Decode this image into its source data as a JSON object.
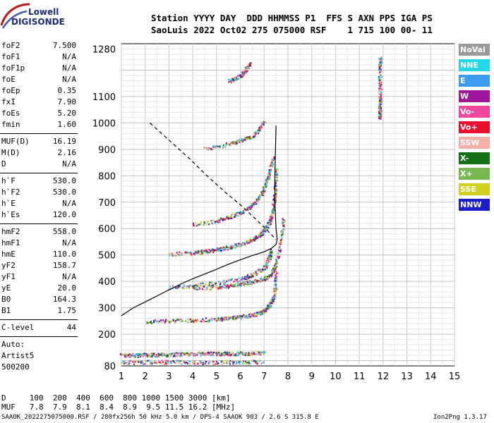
{
  "logo": {
    "line1": "Lowell",
    "line2": "DIGISONDE"
  },
  "header": {
    "labels": "Station YYYY DAY  DDD HHMMSS P1  FFS S AXN PPS IGA PS",
    "values": "SaoLuis 2022 Oct02 275 075000 RSF    1 715 100 00- 11"
  },
  "params": {
    "group1": [
      {
        "name": "foF2",
        "value": "7.500"
      },
      {
        "name": "foF1",
        "value": "N/A"
      },
      {
        "name": "foF1p",
        "value": "N/A"
      },
      {
        "name": "foE",
        "value": "N/A"
      },
      {
        "name": "foEp",
        "value": "0.35"
      },
      {
        "name": "fxI",
        "value": "7.90"
      },
      {
        "name": "foEs",
        "value": "5.20"
      },
      {
        "name": "fmin",
        "value": "1.60"
      }
    ],
    "group2": [
      {
        "name": "MUF(D)",
        "value": "16.19"
      },
      {
        "name": "M(D)",
        "value": "2.16"
      },
      {
        "name": "D",
        "value": "N/A"
      }
    ],
    "group3": [
      {
        "name": "h`F",
        "value": "530.0"
      },
      {
        "name": "h`F2",
        "value": "530.0"
      },
      {
        "name": "h`E",
        "value": "N/A"
      },
      {
        "name": "h`Es",
        "value": "120.0"
      }
    ],
    "group4": [
      {
        "name": "hmF2",
        "value": "558.0"
      },
      {
        "name": "hmF1",
        "value": "N/A"
      },
      {
        "name": "hmE",
        "value": "110.0"
      },
      {
        "name": "yF2",
        "value": "158.7"
      },
      {
        "name": "yF1",
        "value": "N/A"
      },
      {
        "name": "yE",
        "value": "20.0"
      },
      {
        "name": "B0",
        "value": "164.3"
      },
      {
        "name": "B1",
        "value": "1.75"
      }
    ],
    "group5": [
      {
        "name": "C-level",
        "value": "44"
      }
    ],
    "auto": [
      "Auto:",
      "Artist5",
      "500200"
    ]
  },
  "legend": [
    {
      "label": "NoVal",
      "color": "#9a9a9a"
    },
    {
      "label": "NNE",
      "color": "#22d8e8"
    },
    {
      "label": "E",
      "color": "#3c9cf0"
    },
    {
      "label": "W",
      "color": "#a0169c"
    },
    {
      "label": "Vo-",
      "color": "#f0489c"
    },
    {
      "label": "Vo+",
      "color": "#e8102c"
    },
    {
      "label": "SSW",
      "color": "#f4b0a8"
    },
    {
      "label": "X-",
      "color": "#147014"
    },
    {
      "label": "X+",
      "color": "#78b850"
    },
    {
      "label": "SSE",
      "color": "#d0d020"
    },
    {
      "label": "NNW",
      "color": "#1c1cc8"
    }
  ],
  "footer": {
    "d_row": "D     100  200  400  600  800 1000 1500 3000 [km]",
    "muf_row": "MUF   7.8  7.9  8.1  8.4  8.9  9.5 11.5 16.2 [MHz]",
    "info": "SAAOK_2022275075000.RSF / 280fx256h 50 kHz 5.0 km / DPS-4 SAAOK 903 / 2.6 S 315.8 E",
    "version": "Ion2Png 1.3.17"
  },
  "chart_data": {
    "type": "scatter",
    "xlim": [
      1,
      15
    ],
    "ylim": [
      80,
      1300
    ],
    "x_ticks": [
      1,
      2,
      3,
      4,
      5,
      6,
      7,
      8,
      9,
      10,
      11,
      12,
      13,
      14,
      15
    ],
    "y_ticks": [
      80,
      200,
      300,
      400,
      500,
      600,
      700,
      800,
      900,
      1000,
      1100,
      1280
    ],
    "profile_curve": [
      [
        1.0,
        270
      ],
      [
        1.5,
        300
      ],
      [
        2.0,
        322
      ],
      [
        2.5,
        345
      ],
      [
        3.0,
        368
      ],
      [
        3.5,
        390
      ],
      [
        4.0,
        410
      ],
      [
        4.5,
        428
      ],
      [
        5.0,
        446
      ],
      [
        5.5,
        465
      ],
      [
        6.0,
        482
      ],
      [
        6.5,
        498
      ],
      [
        7.0,
        512
      ],
      [
        7.3,
        525
      ],
      [
        7.5,
        540
      ],
      [
        7.55,
        560
      ],
      [
        7.5,
        600
      ],
      [
        7.45,
        700
      ],
      [
        7.45,
        800
      ],
      [
        7.5,
        990
      ]
    ],
    "model_dashed": [
      [
        2.2,
        1000
      ],
      [
        3.0,
        935
      ],
      [
        3.8,
        870
      ],
      [
        4.6,
        800
      ],
      [
        5.4,
        735
      ],
      [
        6.0,
        690
      ],
      [
        6.6,
        640
      ],
      [
        7.0,
        605
      ],
      [
        7.3,
        578
      ],
      [
        7.5,
        558
      ]
    ],
    "traces": [
      {
        "name": "E-layer (Es)",
        "x": [
          1.0,
          1.5,
          2.0,
          2.5,
          3.0,
          3.5,
          4.0,
          4.5,
          5.0,
          5.5,
          6.0,
          6.5,
          7.0
        ],
        "y": [
          122,
          122,
          123,
          124,
          125,
          126,
          127,
          128,
          128,
          128,
          129,
          130,
          132
        ]
      },
      {
        "name": "Es lower",
        "x": [
          1.0,
          2.0,
          3.0,
          4.0,
          5.0,
          6.0,
          7.0
        ],
        "y": [
          95,
          96,
          97,
          96,
          95,
          96,
          97
        ]
      },
      {
        "name": "1st F echo",
        "x": [
          2.0,
          3.0,
          4.0,
          5.0,
          5.5,
          6.0,
          6.5,
          6.8,
          7.0,
          7.2,
          7.35,
          7.45,
          7.5
        ],
        "y": [
          250,
          252,
          255,
          258,
          262,
          268,
          275,
          282,
          292,
          310,
          335,
          380,
          440
        ]
      },
      {
        "name": "o-trace F2",
        "x": [
          3.0,
          4.0,
          4.5,
          5.0,
          5.5,
          6.0,
          6.5,
          6.8,
          7.0,
          7.2,
          7.3,
          7.4,
          7.45,
          7.5
        ],
        "y": [
          505,
          510,
          515,
          522,
          530,
          542,
          560,
          578,
          598,
          625,
          650,
          700,
          760,
          830
        ]
      },
      {
        "name": "2nd hop",
        "x": [
          3.0,
          4.0,
          5.0,
          6.0,
          6.5,
          7.0,
          7.2,
          7.3
        ],
        "y": [
          378,
          385,
          395,
          410,
          425,
          455,
          490,
          520
        ]
      },
      {
        "name": "x-trace",
        "x": [
          4.0,
          5.0,
          5.5,
          6.0,
          6.5,
          7.0,
          7.3,
          7.5,
          7.7,
          7.8
        ],
        "y": [
          375,
          380,
          385,
          392,
          400,
          412,
          430,
          470,
          560,
          640
        ]
      },
      {
        "name": "3rd hop",
        "x": [
          4.0,
          5.0,
          5.5,
          6.0,
          6.5,
          6.8,
          7.0,
          7.2,
          7.4
        ],
        "y": [
          618,
          630,
          645,
          660,
          690,
          720,
          760,
          810,
          880
        ]
      },
      {
        "name": "upper hop",
        "x": [
          4.5,
          5.5,
          6.0,
          6.5,
          6.8,
          7.0
        ],
        "y": [
          905,
          920,
          935,
          950,
          980,
          1010
        ]
      },
      {
        "name": "high echo",
        "x": [
          5.5,
          6.0,
          6.2,
          6.4
        ],
        "y": [
          1160,
          1180,
          1200,
          1230
        ]
      },
      {
        "name": "vertical streak",
        "x": [
          11.85,
          11.85,
          11.85,
          11.85,
          11.85,
          11.85,
          11.85
        ],
        "y": [
          1020,
          1050,
          1080,
          1100,
          1150,
          1210,
          1250
        ]
      }
    ]
  }
}
